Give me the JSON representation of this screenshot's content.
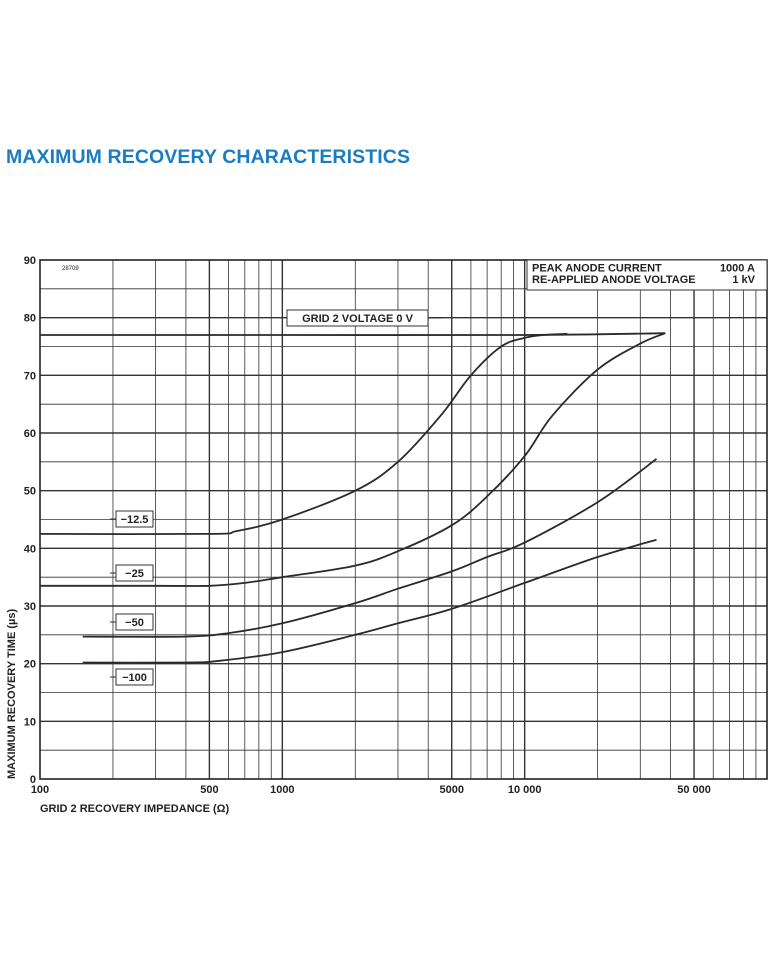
{
  "page": {
    "title": "MAXIMUM RECOVERY CHARACTERISTICS"
  },
  "chart_data": {
    "type": "line",
    "title": "MAXIMUM RECOVERY CHARACTERISTICS",
    "figure_id": "28709",
    "xlabel": "GRID 2 RECOVERY IMPEDANCE (Ω)",
    "ylabel": "MAXIMUM RECOVERY TIME (µs)",
    "xscale": "log",
    "xlim": [
      100,
      100000
    ],
    "ylim": [
      0,
      90
    ],
    "grid": true,
    "x_ticks": [
      {
        "value": 100,
        "label": "100"
      },
      {
        "value": 500,
        "label": "500"
      },
      {
        "value": 1000,
        "label": "1000"
      },
      {
        "value": 5000,
        "label": "5000"
      },
      {
        "value": 10000,
        "label": "10 000"
      },
      {
        "value": 50000,
        "label": "50 000"
      }
    ],
    "y_ticks": [
      0,
      10,
      20,
      30,
      40,
      50,
      60,
      70,
      80,
      90
    ],
    "conditions": [
      {
        "label": "PEAK ANODE CURRENT",
        "value": "1000 A"
      },
      {
        "label": "RE-APPLIED ANODE VOLTAGE",
        "value": "1 kV"
      }
    ],
    "series": [
      {
        "name": "GRID 2 VOLTAGE 0 V",
        "label": "GRID 2 VOLTAGE 0 V",
        "x": [
          100,
          1000,
          10000,
          38000
        ],
        "y": [
          77,
          77,
          77,
          77.3
        ]
      },
      {
        "name": "-12.5",
        "label": "−12.5",
        "x": [
          100,
          500,
          650,
          1000,
          2000,
          3000,
          4500,
          6000,
          8000,
          10000,
          12000,
          15000
        ],
        "y": [
          42.5,
          42.5,
          43,
          45,
          50,
          55,
          63,
          70,
          75,
          76.5,
          77,
          77.2
        ]
      },
      {
        "name": "-25",
        "label": "−25",
        "x": [
          100,
          300,
          500,
          700,
          1000,
          2000,
          3000,
          5000,
          7000,
          10000,
          13000,
          20000,
          30000,
          38000
        ],
        "y": [
          33.5,
          33.5,
          33.5,
          34,
          35,
          37,
          39.5,
          44,
          49,
          56,
          63,
          71,
          75.5,
          77.3
        ]
      },
      {
        "name": "-50",
        "label": "−50",
        "x": [
          150,
          400,
          600,
          1000,
          2000,
          3000,
          5000,
          7000,
          10000,
          20000,
          35000
        ],
        "y": [
          24.7,
          24.7,
          25.3,
          27,
          30.5,
          33,
          36,
          38.5,
          41,
          48,
          55.5
        ]
      },
      {
        "name": "-100",
        "label": "−100",
        "x": [
          150,
          400,
          550,
          1000,
          2000,
          3000,
          5000,
          10000,
          20000,
          35000
        ],
        "y": [
          20.2,
          20.2,
          20.5,
          22,
          25,
          27,
          29.5,
          34,
          38.5,
          41.5
        ]
      }
    ]
  }
}
